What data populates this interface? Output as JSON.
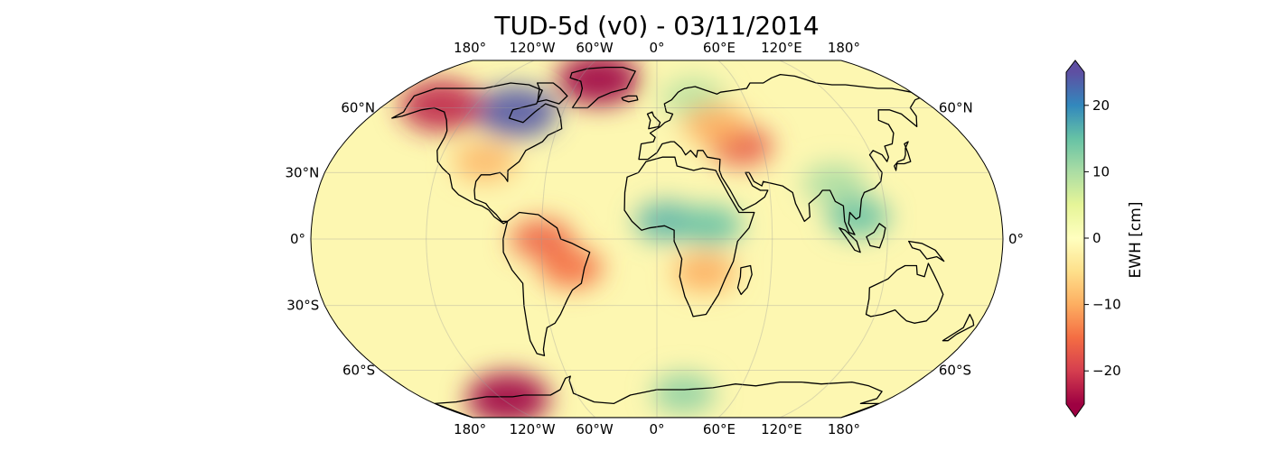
{
  "title": "TUD-5d (v0) - 03/11/2014",
  "projection": "Robinson",
  "map": {
    "lon_labels": [
      "180°",
      "120°W",
      "60°W",
      "0°",
      "60°E",
      "120°E",
      "180°"
    ],
    "lat_labels_left": [
      "60°N",
      "30°N",
      "0°",
      "30°S",
      "60°S"
    ],
    "lat_labels_right": [
      "60°N",
      "0°",
      "60°S"
    ],
    "colormap": "Spectral",
    "anomalies": [
      {
        "name": "greenland-loss",
        "lon": -45,
        "lat": 75,
        "value": -25
      },
      {
        "name": "hudson-bay-gain",
        "lon": -90,
        "lat": 58,
        "value": 24
      },
      {
        "name": "alaska-loss",
        "lon": -142,
        "lat": 61,
        "value": -22
      },
      {
        "name": "west-antarctica-loss",
        "lon": -115,
        "lat": -75,
        "value": -25
      },
      {
        "name": "east-antarctica-gain",
        "lon": 20,
        "lat": -72,
        "value": 12
      },
      {
        "name": "west-africa-gain",
        "lon": 5,
        "lat": 8,
        "value": 16
      },
      {
        "name": "central-africa-gain",
        "lon": 28,
        "lat": 6,
        "value": 15
      },
      {
        "name": "southern-africa-loss",
        "lon": 25,
        "lat": -15,
        "value": -10
      },
      {
        "name": "amazon-north-loss",
        "lon": -60,
        "lat": 0,
        "value": -16
      },
      {
        "name": "brazil-east-loss",
        "lon": -45,
        "lat": -13,
        "value": -15
      },
      {
        "name": "caspian-loss",
        "lon": 48,
        "lat": 42,
        "value": -17
      },
      {
        "name": "scandinavia-gain",
        "lon": 25,
        "lat": 65,
        "value": 9
      },
      {
        "name": "europe-east-loss",
        "lon": 35,
        "lat": 52,
        "value": -10
      },
      {
        "name": "south-asia-gain",
        "lon": 95,
        "lat": 25,
        "value": 10
      },
      {
        "name": "southeast-asia-gain",
        "lon": 105,
        "lat": 10,
        "value": 15
      },
      {
        "name": "central-us-loss",
        "lon": -95,
        "lat": 35,
        "value": -9
      }
    ]
  },
  "colorbar": {
    "label": "EWH [cm]",
    "min": -25,
    "max": 25,
    "ticks": [
      20,
      10,
      0,
      -10,
      -20
    ],
    "tick_labels": [
      "20",
      "10",
      "0",
      "−10",
      "−20"
    ],
    "extend": "both",
    "colors": [
      "#9e0142",
      "#d53e4f",
      "#f46d43",
      "#fdae61",
      "#fee08b",
      "#ffffbf",
      "#e6f598",
      "#abdda4",
      "#66c2a5",
      "#3288bd",
      "#5e4fa2"
    ]
  }
}
